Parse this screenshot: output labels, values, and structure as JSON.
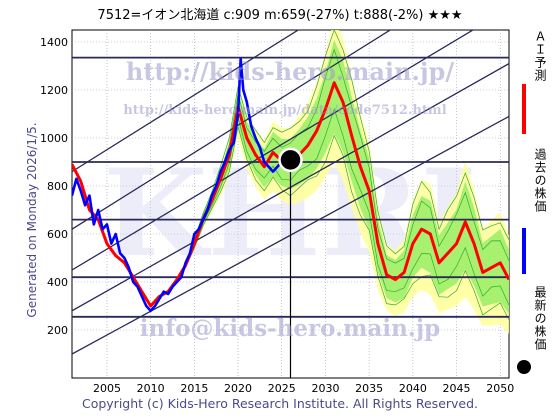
{
  "header": {
    "title": "7512=イオン北海道 c:909 m:659(-27%) t:888(-2%) ★★★"
  },
  "side_label": "Generated on Monday 2026/1/5.",
  "copyright": "Copyright (c) Kids-Hero Research Institute. All Rights Reserved.",
  "watermarks": {
    "url1": "http://kids-hero.main.jp/",
    "url2": "http://kids-hero.main.jp/data/code7512.html",
    "email": "info@kids-hero.main.jp",
    "big": "KHRI"
  },
  "legend": [
    {
      "label": "ＡＩ予測",
      "color": "#ff0000"
    },
    {
      "label": "過去の株価",
      "color": "#0000ff"
    },
    {
      "label": "最新の株価",
      "color": "#000000"
    }
  ],
  "colors": {
    "forecast": "#ff0000",
    "history": "#0000ff",
    "band_outer": "#ffff99",
    "band_inner": "#99ee66",
    "band_lines": "#33aa33",
    "channel": "#2a2a5a",
    "grid": "#9999bb"
  },
  "chart_data": {
    "type": "line",
    "xlim": [
      2001,
      2051
    ],
    "ylim": [
      0,
      1450
    ],
    "x_ticks": [
      "2005",
      "2010",
      "2015",
      "2020",
      "2025",
      "2030",
      "2035",
      "2040",
      "2045",
      "2050"
    ],
    "y_ticks": [
      "200",
      "400",
      "600",
      "800",
      "1000",
      "1200",
      "1400"
    ],
    "horizontal_levels": [
      1335,
      900,
      660,
      420,
      255
    ],
    "channel_lines": [
      {
        "x": [
          2001,
          2051
        ],
        "y": [
          100,
          1090
        ]
      },
      {
        "x": [
          2001,
          2051
        ],
        "y": [
          280,
          1310
        ]
      },
      {
        "x": [
          2001,
          2051
        ],
        "y": [
          450,
          1540
        ]
      },
      {
        "x": [
          2001,
          2051
        ],
        "y": [
          620,
          1760
        ]
      },
      {
        "x": [
          2001,
          2051
        ],
        "y": [
          860,
          2000
        ]
      }
    ],
    "latest": {
      "x": 2026.0,
      "y": 909
    },
    "series": [
      {
        "x": [
          2001,
          2001.5,
          2002,
          2002.5,
          2003,
          2003.5,
          2004,
          2004.5,
          2005,
          2005.5,
          2006,
          2006.5,
          2007,
          2007.5,
          2008,
          2008.5,
          2009,
          2009.5,
          2010,
          2010.5,
          2011,
          2011.5,
          2012,
          2012.5,
          2013,
          2013.5,
          2014,
          2014.5,
          2015,
          2015.5,
          2016,
          2016.5,
          2017,
          2017.5,
          2018,
          2018.5,
          2019,
          2019.5,
          2020,
          2020.3,
          2020.6,
          2021,
          2021.5,
          2022,
          2022.5,
          2023,
          2023.5,
          2024,
          2024.5,
          2025,
          2025.5,
          2026
        ],
        "y": [
          760,
          830,
          780,
          720,
          760,
          640,
          700,
          620,
          640,
          560,
          600,
          520,
          500,
          460,
          400,
          380,
          340,
          300,
          280,
          300,
          330,
          360,
          350,
          380,
          400,
          420,
          480,
          520,
          600,
          620,
          660,
          700,
          760,
          800,
          860,
          900,
          950,
          980,
          1100,
          1330,
          1200,
          1150,
          1050,
          1000,
          960,
          900,
          880,
          860,
          880,
          900,
          900,
          909
        ]
      },
      {
        "x": [
          2001,
          2002,
          2003,
          2004,
          2005,
          2006,
          2007,
          2008,
          2009,
          2010,
          2011,
          2012,
          2013,
          2014,
          2015,
          2016,
          2017,
          2018,
          2019,
          2020,
          2021,
          2022,
          2023,
          2024,
          2025,
          2026,
          2027,
          2028,
          2029,
          2030,
          2031,
          2032,
          2033,
          2034,
          2035,
          2036,
          2037,
          2038,
          2039,
          2040,
          2041,
          2042,
          2043,
          2044,
          2045,
          2046,
          2047,
          2048,
          2049,
          2050,
          2051
        ],
        "y": [
          890,
          820,
          700,
          660,
          560,
          510,
          480,
          420,
          360,
          300,
          340,
          360,
          410,
          470,
          560,
          660,
          740,
          830,
          930,
          1130,
          1000,
          930,
          880,
          940,
          905,
          900,
          930,
          970,
          1030,
          1120,
          1230,
          1150,
          1010,
          880,
          780,
          560,
          430,
          410,
          440,
          560,
          620,
          600,
          480,
          520,
          560,
          650,
          560,
          440,
          460,
          480,
          410
        ]
      }
    ]
  }
}
